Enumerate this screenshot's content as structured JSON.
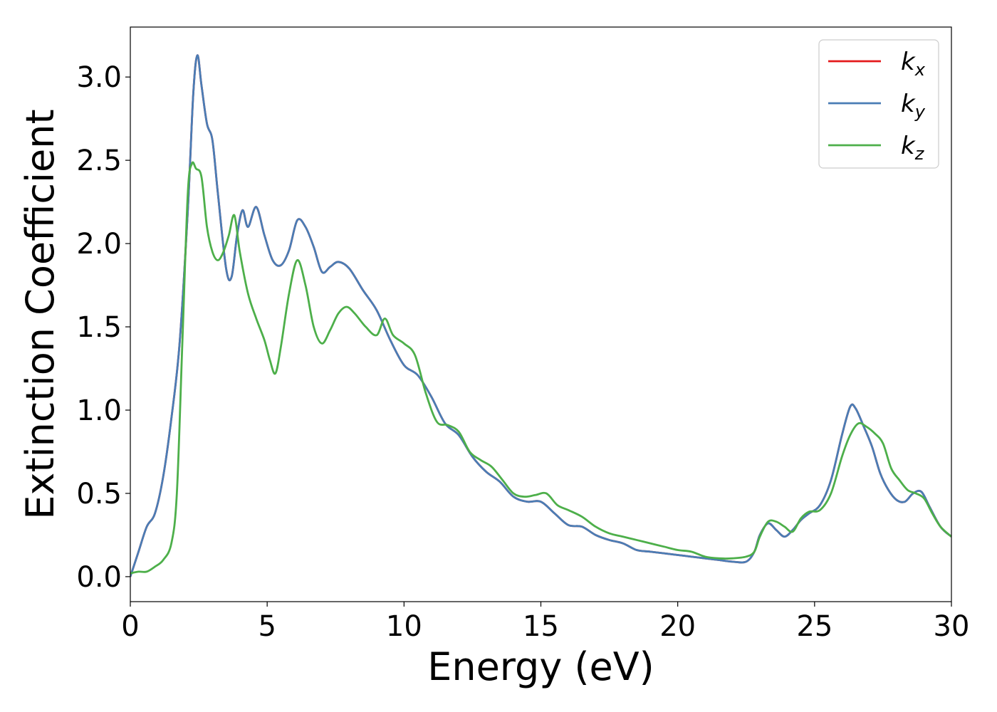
{
  "chart_data": {
    "type": "line",
    "title": "",
    "xlabel": "Energy (eV)",
    "ylabel": "Extinction Coefficient",
    "xlim": [
      0,
      30
    ],
    "ylim": [
      -0.15,
      3.3
    ],
    "xticks": [
      0,
      5,
      10,
      15,
      20,
      25,
      30
    ],
    "xtick_labels": [
      "0",
      "5",
      "10",
      "15",
      "20",
      "25",
      "30"
    ],
    "yticks": [
      0.0,
      0.5,
      1.0,
      1.5,
      2.0,
      2.5,
      3.0
    ],
    "ytick_labels": [
      "0.0",
      "0.5",
      "1.0",
      "1.5",
      "2.0",
      "2.5",
      "3.0"
    ],
    "grid": false,
    "legend_position": "top-right",
    "series": [
      {
        "name": "k",
        "subscript": "x",
        "color": "#e41a1c",
        "x": [
          0,
          0.3,
          0.6,
          0.9,
          1.2,
          1.5,
          1.8,
          2.1,
          2.3,
          2.45,
          2.6,
          2.8,
          3.0,
          3.2,
          3.5,
          3.7,
          3.9,
          4.1,
          4.3,
          4.6,
          4.9,
          5.2,
          5.5,
          5.8,
          6.1,
          6.4,
          6.7,
          7.0,
          7.3,
          7.6,
          8.0,
          8.5,
          9.0,
          9.5,
          10.0,
          10.5,
          11.0,
          11.5,
          12.0,
          12.5,
          13.0,
          13.5,
          14.0,
          14.5,
          15.0,
          15.5,
          16.0,
          16.5,
          17.0,
          17.5,
          18.0,
          18.5,
          19.0,
          19.5,
          20.0,
          20.5,
          21.0,
          21.5,
          22.0,
          22.5,
          22.8,
          23.0,
          23.3,
          23.6,
          23.9,
          24.2,
          24.5,
          24.8,
          25.2,
          25.6,
          26.0,
          26.3,
          26.5,
          26.8,
          27.1,
          27.4,
          27.7,
          28.0,
          28.3,
          28.6,
          28.9,
          29.2,
          29.6,
          30.0
        ],
        "y": [
          0.0,
          0.15,
          0.3,
          0.38,
          0.6,
          0.95,
          1.4,
          2.2,
          2.9,
          3.13,
          2.95,
          2.72,
          2.62,
          2.3,
          1.85,
          1.8,
          2.05,
          2.2,
          2.1,
          2.22,
          2.05,
          1.9,
          1.87,
          1.96,
          2.14,
          2.1,
          1.98,
          1.83,
          1.86,
          1.89,
          1.85,
          1.72,
          1.6,
          1.42,
          1.27,
          1.21,
          1.08,
          0.92,
          0.85,
          0.72,
          0.63,
          0.57,
          0.48,
          0.45,
          0.45,
          0.38,
          0.31,
          0.3,
          0.25,
          0.22,
          0.2,
          0.16,
          0.15,
          0.14,
          0.13,
          0.12,
          0.11,
          0.1,
          0.09,
          0.09,
          0.15,
          0.25,
          0.32,
          0.28,
          0.24,
          0.28,
          0.34,
          0.38,
          0.43,
          0.58,
          0.85,
          1.02,
          1.01,
          0.9,
          0.78,
          0.62,
          0.52,
          0.46,
          0.45,
          0.5,
          0.51,
          0.42,
          0.3,
          0.24
        ]
      },
      {
        "name": "k",
        "subscript": "y",
        "color": "#4a7db5",
        "x": [
          0,
          0.3,
          0.6,
          0.9,
          1.2,
          1.5,
          1.8,
          2.1,
          2.3,
          2.45,
          2.6,
          2.8,
          3.0,
          3.2,
          3.5,
          3.7,
          3.9,
          4.1,
          4.3,
          4.6,
          4.9,
          5.2,
          5.5,
          5.8,
          6.1,
          6.4,
          6.7,
          7.0,
          7.3,
          7.6,
          8.0,
          8.5,
          9.0,
          9.5,
          10.0,
          10.5,
          11.0,
          11.5,
          12.0,
          12.5,
          13.0,
          13.5,
          14.0,
          14.5,
          15.0,
          15.5,
          16.0,
          16.5,
          17.0,
          17.5,
          18.0,
          18.5,
          19.0,
          19.5,
          20.0,
          20.5,
          21.0,
          21.5,
          22.0,
          22.5,
          22.8,
          23.0,
          23.3,
          23.6,
          23.9,
          24.2,
          24.5,
          24.8,
          25.2,
          25.6,
          26.0,
          26.3,
          26.5,
          26.8,
          27.1,
          27.4,
          27.7,
          28.0,
          28.3,
          28.6,
          28.9,
          29.2,
          29.6,
          30.0
        ],
        "y": [
          0.0,
          0.15,
          0.3,
          0.38,
          0.6,
          0.95,
          1.4,
          2.2,
          2.9,
          3.13,
          2.95,
          2.72,
          2.62,
          2.3,
          1.85,
          1.8,
          2.05,
          2.2,
          2.1,
          2.22,
          2.05,
          1.9,
          1.87,
          1.96,
          2.14,
          2.1,
          1.98,
          1.83,
          1.86,
          1.89,
          1.85,
          1.72,
          1.6,
          1.42,
          1.27,
          1.21,
          1.08,
          0.92,
          0.85,
          0.72,
          0.63,
          0.57,
          0.48,
          0.45,
          0.45,
          0.38,
          0.31,
          0.3,
          0.25,
          0.22,
          0.2,
          0.16,
          0.15,
          0.14,
          0.13,
          0.12,
          0.11,
          0.1,
          0.09,
          0.09,
          0.15,
          0.25,
          0.32,
          0.28,
          0.24,
          0.28,
          0.34,
          0.38,
          0.43,
          0.58,
          0.85,
          1.02,
          1.01,
          0.9,
          0.78,
          0.62,
          0.52,
          0.46,
          0.45,
          0.5,
          0.51,
          0.42,
          0.3,
          0.24
        ]
      },
      {
        "name": "k",
        "subscript": "z",
        "color": "#4daf4a",
        "x": [
          0,
          0.3,
          0.6,
          0.9,
          1.2,
          1.5,
          1.7,
          1.9,
          2.1,
          2.25,
          2.4,
          2.6,
          2.8,
          3.0,
          3.2,
          3.4,
          3.6,
          3.8,
          4.0,
          4.3,
          4.6,
          4.9,
          5.1,
          5.3,
          5.5,
          5.8,
          6.1,
          6.4,
          6.7,
          7.0,
          7.3,
          7.6,
          7.9,
          8.2,
          8.6,
          9.0,
          9.3,
          9.6,
          10.0,
          10.4,
          10.8,
          11.2,
          11.6,
          12.0,
          12.4,
          12.8,
          13.2,
          13.6,
          14.0,
          14.4,
          14.8,
          15.2,
          15.6,
          16.0,
          16.5,
          17.0,
          17.5,
          18.0,
          18.5,
          19.0,
          19.5,
          20.0,
          20.5,
          21.0,
          21.5,
          22.0,
          22.5,
          22.8,
          23.0,
          23.3,
          23.6,
          23.9,
          24.2,
          24.5,
          24.8,
          25.2,
          25.6,
          26.0,
          26.3,
          26.6,
          26.9,
          27.2,
          27.5,
          27.8,
          28.1,
          28.4,
          28.7,
          29.0,
          29.3,
          29.6,
          30.0
        ],
        "y": [
          0.02,
          0.03,
          0.03,
          0.06,
          0.1,
          0.2,
          0.5,
          1.4,
          2.3,
          2.48,
          2.45,
          2.4,
          2.1,
          1.95,
          1.9,
          1.95,
          2.05,
          2.17,
          1.95,
          1.7,
          1.55,
          1.42,
          1.3,
          1.22,
          1.38,
          1.7,
          1.9,
          1.75,
          1.5,
          1.4,
          1.48,
          1.58,
          1.62,
          1.58,
          1.5,
          1.45,
          1.55,
          1.45,
          1.4,
          1.33,
          1.1,
          0.93,
          0.91,
          0.87,
          0.75,
          0.7,
          0.66,
          0.58,
          0.5,
          0.48,
          0.49,
          0.5,
          0.43,
          0.4,
          0.36,
          0.3,
          0.26,
          0.24,
          0.22,
          0.2,
          0.18,
          0.16,
          0.15,
          0.12,
          0.11,
          0.11,
          0.12,
          0.15,
          0.24,
          0.33,
          0.33,
          0.3,
          0.27,
          0.35,
          0.39,
          0.4,
          0.5,
          0.72,
          0.85,
          0.92,
          0.9,
          0.86,
          0.8,
          0.65,
          0.58,
          0.52,
          0.5,
          0.47,
          0.38,
          0.3,
          0.24
        ]
      }
    ]
  }
}
